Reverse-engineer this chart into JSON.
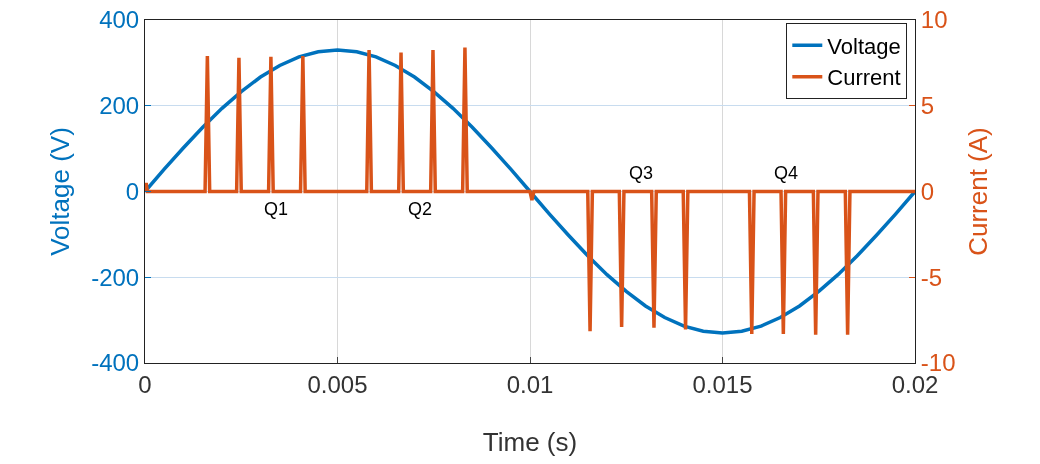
{
  "chart_data": {
    "type": "line",
    "xlabel": "Time (s)",
    "ylabel": "Voltage (V)",
    "y2label": "Current (A)",
    "xlim": [
      0,
      0.02
    ],
    "xticks": [
      0,
      0.005,
      0.01,
      0.015,
      0.02
    ],
    "ylim": [
      -400,
      400
    ],
    "yticks": [
      -400,
      -200,
      0,
      200,
      400
    ],
    "y2lim": [
      -10,
      10
    ],
    "y2ticks": [
      -10,
      -5,
      0,
      5,
      10
    ],
    "grid": true,
    "legend": "top right",
    "marker": "none",
    "line_style": "solid",
    "annotations": [
      "Q1",
      "Q2",
      "Q3",
      "Q4"
    ],
    "series": [
      {
        "name": "Voltage",
        "color": "#0072bd",
        "x": [
          0,
          0.0005,
          0.001,
          0.0015,
          0.002,
          0.0025,
          0.003,
          0.0035,
          0.004,
          0.0045,
          0.005,
          0.0055,
          0.006,
          0.0065,
          0.007,
          0.0075,
          0.008,
          0.0085,
          0.009,
          0.0095,
          0.01,
          0.0105,
          0.011,
          0.0115,
          0.012,
          0.0125,
          0.013,
          0.0135,
          0.014,
          0.0145,
          0.015,
          0.0155,
          0.016,
          0.0165,
          0.017,
          0.0175,
          0.018,
          0.0185,
          0.019,
          0.0195,
          0.02
        ],
        "values": [
          0,
          52,
          102,
          150,
          194,
          233,
          267,
          294,
          314,
          326,
          330,
          326,
          314,
          294,
          267,
          233,
          194,
          150,
          102,
          52,
          0,
          -52,
          -102,
          -150,
          -194,
          -233,
          -267,
          -294,
          -314,
          -326,
          -330,
          -326,
          -314,
          -294,
          -267,
          -233,
          -194,
          -150,
          -102,
          -52,
          0
        ]
      },
      {
        "name": "Current",
        "color": "#d95319",
        "axis": "y2",
        "x": [
          0,
          3e-05,
          6e-05,
          0.00156,
          0.00162,
          0.00168,
          0.00238,
          0.00244,
          0.0025,
          0.00321,
          0.00327,
          0.00333,
          0.00404,
          0.0041,
          0.00416,
          0.00576,
          0.00582,
          0.00588,
          0.00659,
          0.00665,
          0.00671,
          0.00742,
          0.00748,
          0.00754,
          0.00825,
          0.00831,
          0.00837,
          0.01,
          0.01005,
          0.0101,
          0.0115,
          0.01156,
          0.01162,
          0.01232,
          0.01238,
          0.01244,
          0.01316,
          0.01322,
          0.01328,
          0.01398,
          0.01404,
          0.0141,
          0.0157,
          0.01576,
          0.01582,
          0.01652,
          0.01658,
          0.01664,
          0.01736,
          0.01742,
          0.01748,
          0.01819,
          0.01825,
          0.01831,
          0.02
        ],
        "values": [
          0,
          0.5,
          0,
          0,
          7.9,
          0,
          0,
          7.8,
          0,
          0,
          7.85,
          0,
          0,
          7.9,
          0,
          0,
          8.25,
          0,
          0,
          8.1,
          0,
          0,
          8.25,
          0,
          0,
          8.4,
          0,
          0,
          -0.5,
          0,
          0,
          -8.15,
          0,
          0,
          -7.9,
          0,
          0,
          -7.95,
          0,
          0,
          -8.05,
          0,
          0,
          -8.3,
          0,
          0,
          -8.3,
          0,
          0,
          -8.35,
          0,
          0,
          -8.35,
          0,
          0
        ]
      }
    ]
  }
}
